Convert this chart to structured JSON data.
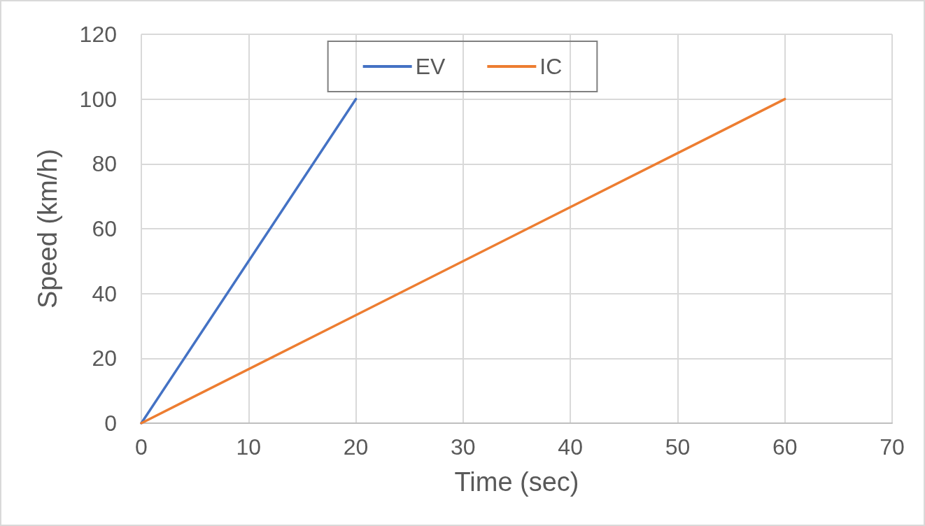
{
  "chart_data": {
    "type": "line",
    "xlabel": "Time (sec)",
    "ylabel": "Speed (km/h)",
    "series": [
      {
        "name": "EV",
        "color": "#4472c4",
        "x": [
          0,
          20
        ],
        "values": [
          0,
          100
        ]
      },
      {
        "name": "IC",
        "color": "#ed7d31",
        "x": [
          0,
          60
        ],
        "values": [
          0,
          100
        ]
      }
    ],
    "xlim": [
      0,
      70
    ],
    "xticks": [
      0,
      10,
      20,
      30,
      40,
      50,
      60,
      70
    ],
    "ylim": [
      0,
      120
    ],
    "yticks": [
      0,
      20,
      40,
      60,
      80,
      100,
      120
    ],
    "grid": true,
    "legend": "top",
    "marker": "none",
    "line_style": "solid"
  }
}
